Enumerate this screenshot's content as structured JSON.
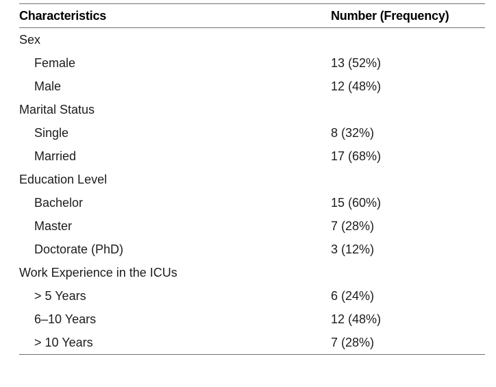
{
  "colors": {
    "background": "#ffffff",
    "text": "#1c1c1c",
    "header_text": "#000000",
    "rule": "#6e6e6e"
  },
  "table": {
    "columns": {
      "characteristics": "Characteristics",
      "number_frequency": "Number (Frequency)"
    },
    "rows": [
      {
        "label": "Sex",
        "value": "",
        "indent": false
      },
      {
        "label": "Female",
        "value": "13 (52%)",
        "indent": true
      },
      {
        "label": "Male",
        "value": "12 (48%)",
        "indent": true
      },
      {
        "label": "Marital Status",
        "value": "",
        "indent": false
      },
      {
        "label": "Single",
        "value": "8 (32%)",
        "indent": true
      },
      {
        "label": "Married",
        "value": "17 (68%)",
        "indent": true
      },
      {
        "label": "Education Level",
        "value": "",
        "indent": false
      },
      {
        "label": "Bachelor",
        "value": "15 (60%)",
        "indent": true
      },
      {
        "label": "Master",
        "value": "7 (28%)",
        "indent": true
      },
      {
        "label": "Doctorate (PhD)",
        "value": "3 (12%)",
        "indent": true
      },
      {
        "label": "Work Experience in the ICUs",
        "value": "",
        "indent": false
      },
      {
        "label": "> 5 Years",
        "value": "6 (24%)",
        "indent": true
      },
      {
        "label": "6–10 Years",
        "value": "12 (48%)",
        "indent": true
      },
      {
        "label": "> 10 Years",
        "value": "7 (28%)",
        "indent": true
      }
    ]
  }
}
